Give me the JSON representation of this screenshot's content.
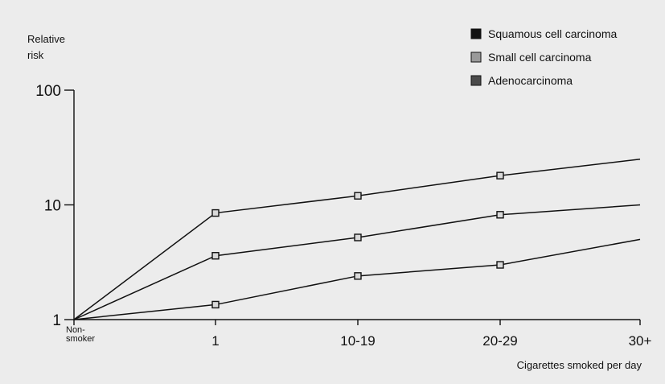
{
  "chart_data": {
    "type": "line",
    "y_scale": "log",
    "ylabel_lines": [
      "Relative",
      "risk"
    ],
    "xlabel": "Cigarettes smoked per day",
    "categories": [
      "Non-smoker",
      "1",
      "10-19",
      "20-29",
      "30+"
    ],
    "category_label_lines": [
      [
        "Non-",
        "smoker"
      ],
      [
        "1"
      ],
      [
        "10-19"
      ],
      [
        "20-29"
      ],
      [
        "30+"
      ]
    ],
    "y_ticks": [
      1,
      10,
      100
    ],
    "y_tick_labels": [
      "1",
      "10",
      "100"
    ],
    "ylim": [
      1,
      100
    ],
    "grid": false,
    "legend_position": "top-right",
    "legend": [
      {
        "label": "Squamous cell carcinoma",
        "marker": "dark"
      },
      {
        "label": "Small cell carcinoma",
        "marker": "light"
      },
      {
        "label": "Adenocarcinoma",
        "marker": "medium"
      }
    ],
    "series": [
      {
        "values": [
          1,
          8.5,
          12,
          18,
          25
        ]
      },
      {
        "values": [
          1,
          3.6,
          5.2,
          8.2,
          10
        ]
      },
      {
        "values": [
          1,
          1.35,
          2.4,
          3.0,
          5.0
        ]
      }
    ]
  },
  "colors": {
    "background": "#ececec",
    "ink": "#111111",
    "marker_fill": "#d9d9d9"
  }
}
